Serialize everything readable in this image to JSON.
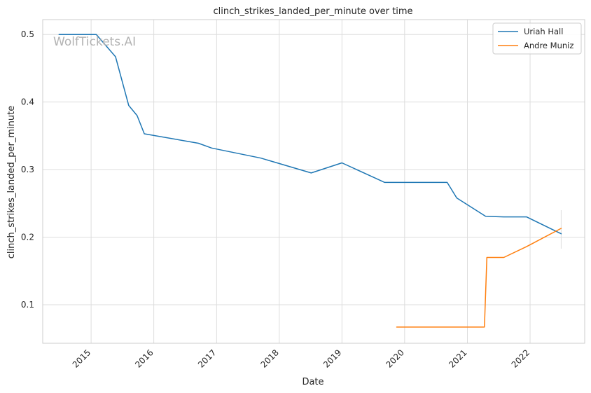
{
  "chart_data": {
    "type": "line",
    "title": "clinch_strikes_landed_per_minute over time",
    "xlabel": "Date",
    "ylabel": "clinch_strikes_landed_per_minute",
    "watermark": "WolfTickets.AI",
    "x_axis_type": "date",
    "xlim": [
      "2014-03-25",
      "2022-11-15"
    ],
    "ylim": [
      0.043,
      0.522
    ],
    "x_ticks": [
      "2015-01-01",
      "2016-01-01",
      "2017-01-01",
      "2018-01-01",
      "2019-01-01",
      "2020-01-01",
      "2021-01-01",
      "2022-01-01"
    ],
    "x_tick_labels": [
      "2015",
      "2016",
      "2017",
      "2018",
      "2019",
      "2020",
      "2021",
      "2022"
    ],
    "y_ticks": [
      0.1,
      0.2,
      0.3,
      0.4,
      0.5
    ],
    "y_tick_labels": [
      "0.1",
      "0.2",
      "0.3",
      "0.4",
      "0.5"
    ],
    "grid": true,
    "legend_position": "top-right",
    "series": [
      {
        "name": "Uriah Hall",
        "color": "#1f77b4",
        "x": [
          "2014-06-28",
          "2015-01-31",
          "2015-05-23",
          "2015-08-08",
          "2015-09-26",
          "2015-11-07",
          "2016-09-17",
          "2016-12-03",
          "2017-09-16",
          "2018-07-06",
          "2019-01-01",
          "2019-09-07",
          "2020-09-05",
          "2020-10-31",
          "2021-04-17",
          "2021-07-31",
          "2021-12-11",
          "2022-07-01"
        ],
        "values": [
          0.5,
          0.5,
          0.467,
          0.395,
          0.38,
          0.353,
          0.339,
          0.332,
          0.317,
          0.295,
          0.31,
          0.281,
          0.281,
          0.258,
          0.231,
          0.23,
          0.23,
          0.205
        ]
      },
      {
        "name": "Andre Muniz",
        "color": "#ff7f0e",
        "x": [
          "2019-11-16",
          "2021-04-10",
          "2021-04-24",
          "2021-08-01",
          "2021-12-11",
          "2022-07-01"
        ],
        "values": [
          0.067,
          0.067,
          0.17,
          0.17,
          0.186,
          0.213
        ]
      }
    ],
    "end_marker": {
      "x": "2022-07-01",
      "y_low": 0.183,
      "y_high": 0.24,
      "color": "#dddddd"
    }
  }
}
